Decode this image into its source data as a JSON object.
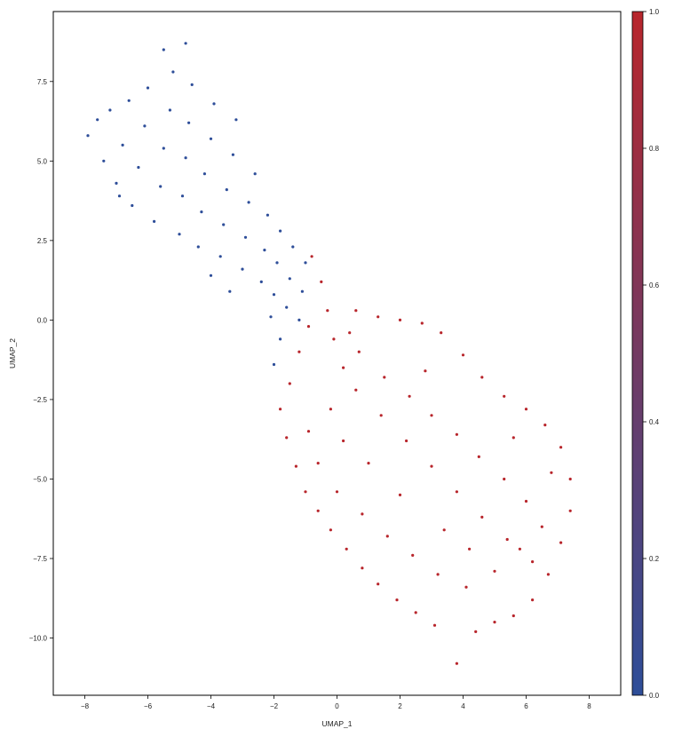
{
  "chart_data": {
    "type": "scatter",
    "title": "",
    "xlabel": "UMAP_1",
    "ylabel": "UMAP_2",
    "xlim": [
      -9,
      9
    ],
    "ylim": [
      -11.8,
      9.7
    ],
    "x_ticks": [
      -8,
      -6,
      -4,
      -2,
      0,
      2,
      4,
      6,
      8
    ],
    "x_tick_labels": [
      "−8",
      "−6",
      "−4",
      "−2",
      "0",
      "2",
      "4",
      "6",
      "8"
    ],
    "y_ticks": [
      7.5,
      5.0,
      2.5,
      0.0,
      -2.5,
      -5.0,
      -7.5,
      -10.0
    ],
    "y_tick_labels": [
      "7.5",
      "5.0",
      "2.5",
      "0.0",
      "−2.5",
      "−5.0",
      "−7.5",
      "−10.0"
    ],
    "grid": false,
    "colorbar": {
      "range": [
        0.0,
        1.0
      ],
      "ticks": [
        0.0,
        0.2,
        0.4,
        0.6,
        0.8,
        1.0
      ],
      "tick_labels": [
        "0.0",
        "0.2",
        "0.4",
        "0.6",
        "0.8",
        "1.0"
      ],
      "low_color": "#2E4E99",
      "high_color": "#B8262C"
    },
    "clusters": [
      {
        "value": 0.0,
        "color": "#2E4E99",
        "points": [
          [
            -7.9,
            5.8
          ],
          [
            -7.6,
            6.3
          ],
          [
            -7.4,
            5.0
          ],
          [
            -7.2,
            6.6
          ],
          [
            -7.0,
            4.3
          ],
          [
            -6.8,
            5.5
          ],
          [
            -6.6,
            6.9
          ],
          [
            -6.5,
            3.6
          ],
          [
            -6.3,
            4.8
          ],
          [
            -6.1,
            6.1
          ],
          [
            -6.0,
            7.3
          ],
          [
            -5.8,
            3.1
          ],
          [
            -5.6,
            4.2
          ],
          [
            -5.5,
            5.4
          ],
          [
            -5.3,
            6.6
          ],
          [
            -5.2,
            7.8
          ],
          [
            -5.0,
            2.7
          ],
          [
            -4.9,
            3.9
          ],
          [
            -4.8,
            5.1
          ],
          [
            -4.7,
            6.2
          ],
          [
            -4.6,
            7.4
          ],
          [
            -4.4,
            2.3
          ],
          [
            -4.3,
            3.4
          ],
          [
            -4.2,
            4.6
          ],
          [
            -4.0,
            5.7
          ],
          [
            -3.9,
            6.8
          ],
          [
            -3.7,
            2.0
          ],
          [
            -3.6,
            3.0
          ],
          [
            -3.5,
            4.1
          ],
          [
            -3.3,
            5.2
          ],
          [
            -3.2,
            6.3
          ],
          [
            -3.0,
            1.6
          ],
          [
            -2.9,
            2.6
          ],
          [
            -2.8,
            3.7
          ],
          [
            -2.6,
            4.6
          ],
          [
            -2.4,
            1.2
          ],
          [
            -2.3,
            2.2
          ],
          [
            -2.2,
            3.3
          ],
          [
            -2.0,
            0.8
          ],
          [
            -1.9,
            1.8
          ],
          [
            -1.8,
            2.8
          ],
          [
            -1.6,
            0.4
          ],
          [
            -1.5,
            1.3
          ],
          [
            -1.4,
            2.3
          ],
          [
            -1.2,
            0.0
          ],
          [
            -1.1,
            0.9
          ],
          [
            -1.0,
            1.8
          ],
          [
            -2.1,
            0.1
          ],
          [
            -1.8,
            -0.6
          ],
          [
            -2.0,
            -1.4
          ],
          [
            -5.5,
            8.5
          ],
          [
            -4.8,
            8.7
          ],
          [
            -6.9,
            3.9
          ],
          [
            -4.0,
            1.4
          ],
          [
            -3.4,
            0.9
          ]
        ]
      },
      {
        "value": 1.0,
        "color": "#B8262C",
        "points": [
          [
            -0.8,
            2.0
          ],
          [
            -0.5,
            1.2
          ],
          [
            -0.3,
            0.3
          ],
          [
            -0.1,
            -0.6
          ],
          [
            0.2,
            -1.5
          ],
          [
            0.4,
            -0.4
          ],
          [
            0.6,
            0.3
          ],
          [
            -0.9,
            -0.2
          ],
          [
            -1.2,
            -1.0
          ],
          [
            -1.5,
            -2.0
          ],
          [
            -1.8,
            -2.8
          ],
          [
            -1.6,
            -3.7
          ],
          [
            -1.3,
            -4.6
          ],
          [
            -1.0,
            -5.4
          ],
          [
            -0.6,
            -6.0
          ],
          [
            -0.2,
            -6.6
          ],
          [
            0.3,
            -7.2
          ],
          [
            0.8,
            -7.8
          ],
          [
            1.3,
            -8.3
          ],
          [
            1.9,
            -8.8
          ],
          [
            2.5,
            -9.2
          ],
          [
            3.1,
            -9.6
          ],
          [
            3.8,
            -10.8
          ],
          [
            4.4,
            -9.8
          ],
          [
            5.0,
            -9.5
          ],
          [
            5.6,
            -9.3
          ],
          [
            6.2,
            -8.8
          ],
          [
            6.7,
            -8.0
          ],
          [
            7.1,
            -7.0
          ],
          [
            7.4,
            -6.0
          ],
          [
            7.4,
            -5.0
          ],
          [
            7.1,
            -4.0
          ],
          [
            6.6,
            -3.3
          ],
          [
            6.0,
            -2.8
          ],
          [
            5.3,
            -2.4
          ],
          [
            4.6,
            -1.8
          ],
          [
            4.0,
            -1.1
          ],
          [
            3.3,
            -0.4
          ],
          [
            2.7,
            -0.1
          ],
          [
            2.0,
            0.0
          ],
          [
            1.3,
            0.1
          ],
          [
            0.7,
            -1.0
          ],
          [
            1.5,
            -1.8
          ],
          [
            2.3,
            -2.4
          ],
          [
            3.0,
            -3.0
          ],
          [
            3.8,
            -3.6
          ],
          [
            4.5,
            -4.3
          ],
          [
            5.3,
            -5.0
          ],
          [
            6.0,
            -5.7
          ],
          [
            6.5,
            -6.5
          ],
          [
            5.8,
            -7.2
          ],
          [
            5.0,
            -7.9
          ],
          [
            4.1,
            -8.4
          ],
          [
            3.2,
            -8.0
          ],
          [
            2.4,
            -7.4
          ],
          [
            1.6,
            -6.8
          ],
          [
            0.8,
            -6.1
          ],
          [
            0.0,
            -5.4
          ],
          [
            -0.6,
            -4.5
          ],
          [
            -0.9,
            -3.5
          ],
          [
            -0.2,
            -2.8
          ],
          [
            0.6,
            -2.2
          ],
          [
            1.4,
            -3.0
          ],
          [
            2.2,
            -3.8
          ],
          [
            3.0,
            -4.6
          ],
          [
            3.8,
            -5.4
          ],
          [
            4.6,
            -6.2
          ],
          [
            5.4,
            -6.9
          ],
          [
            6.2,
            -7.6
          ],
          [
            2.0,
            -5.5
          ],
          [
            1.0,
            -4.5
          ],
          [
            0.2,
            -3.8
          ],
          [
            3.4,
            -6.6
          ],
          [
            4.2,
            -7.2
          ],
          [
            2.8,
            -1.6
          ],
          [
            5.6,
            -3.7
          ],
          [
            6.8,
            -4.8
          ]
        ]
      }
    ]
  }
}
